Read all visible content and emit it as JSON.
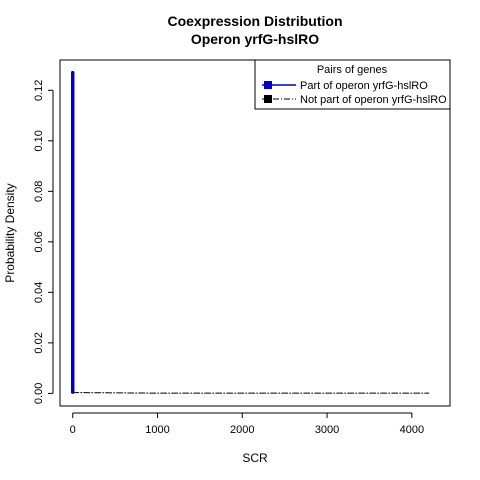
{
  "chart_data": {
    "type": "line",
    "title": "Coexpression Distribution",
    "subtitle": "Operon yrfG-hslRO",
    "xlabel": "SCR",
    "ylabel": "Probability Density",
    "xlim": [
      -150,
      4450
    ],
    "ylim": [
      -0.005,
      0.132
    ],
    "xticks": [
      0,
      1000,
      2000,
      3000,
      4000
    ],
    "yticks": [
      0.0,
      0.02,
      0.04,
      0.06,
      0.08,
      0.1,
      0.12
    ],
    "xtick_labels": [
      "0",
      "1000",
      "2000",
      "3000",
      "4000"
    ],
    "ytick_labels": [
      "0.00",
      "0.02",
      "0.04",
      "0.06",
      "0.08",
      "0.10",
      "0.12"
    ],
    "grid": false,
    "legend": {
      "title": "Pairs of genes",
      "position": "top-right",
      "entries": [
        "Part of operon yrfG-hslRO",
        "Not part of operon yrfG-hslRO"
      ]
    },
    "series": [
      {
        "name": "Part of operon yrfG-hslRO",
        "color": "#0000cc",
        "line_style": "solid",
        "x": [
          0,
          0
        ],
        "y": [
          0.0005,
          0.127
        ]
      },
      {
        "name": "Not part of operon yrfG-hslRO",
        "color": "#000000",
        "line_style": "dashdot",
        "x": [
          0,
          500,
          1000,
          1500,
          2000,
          2500,
          3000,
          3500,
          4000,
          4200
        ],
        "y": [
          0.0003,
          0.0002,
          0.0001,
          0.0001,
          0.0001,
          0.0001,
          0.0001,
          0.0001,
          0.0001,
          0.0001
        ]
      }
    ]
  }
}
